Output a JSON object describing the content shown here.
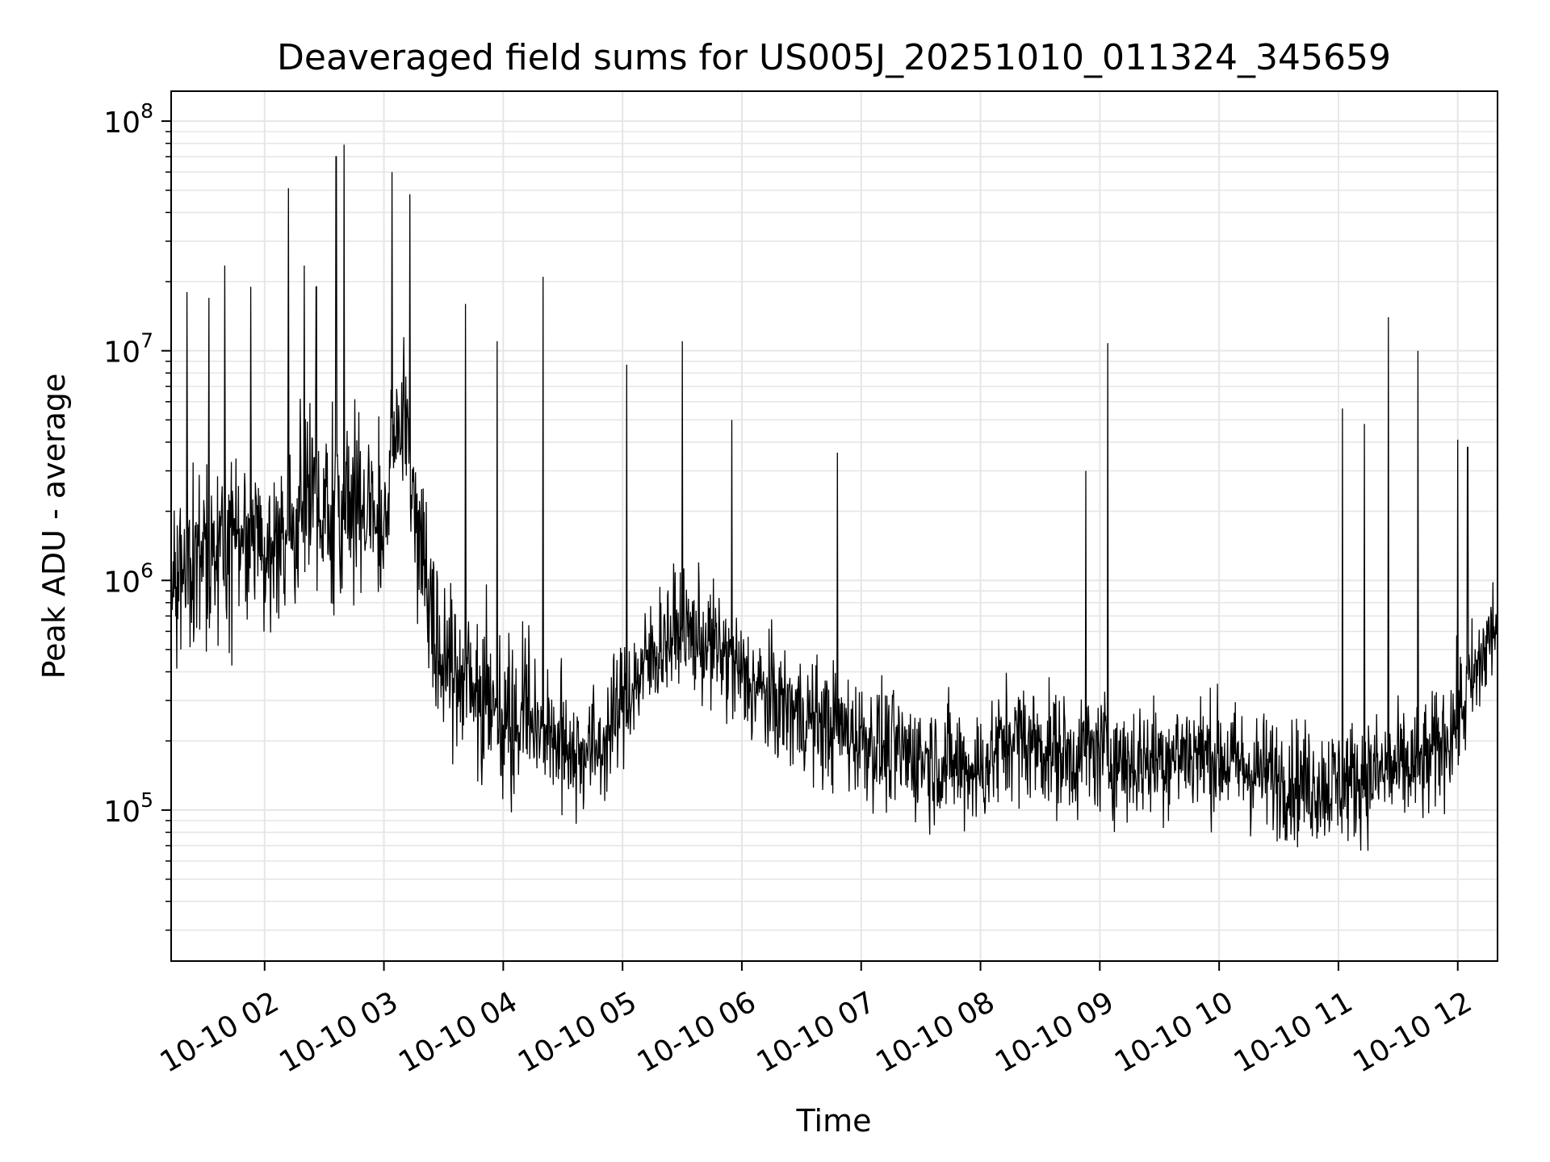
{
  "chart_data": {
    "type": "line",
    "title": "Deaveraged field sums for US005J_20251010_011324_345659",
    "xlabel": "Time",
    "ylabel": "Peak ADU - average",
    "yscale": "log",
    "ylim": [
      22000,
      135000000
    ],
    "xlim": [
      "10-10 01:13",
      "10-10 12:20"
    ],
    "grid": true,
    "line_color": "#000000",
    "grid_color": "#e6e6e6",
    "x_tick_labels": [
      "10-10 02",
      "10-10 03",
      "10-10 04",
      "10-10 05",
      "10-10 06",
      "10-10 07",
      "10-10 08",
      "10-10 09",
      "10-10 10",
      "10-10 11",
      "10-10 12"
    ],
    "y_tick_labels": [
      {
        "base": "10",
        "exp": "5"
      },
      {
        "base": "10",
        "exp": "6"
      },
      {
        "base": "10",
        "exp": "7"
      },
      {
        "base": "10",
        "exp": "8"
      }
    ],
    "series": [
      {
        "x": [
          "10-10 01:13",
          "10-10 01:20",
          "10-10 01:30",
          "10-10 01:40",
          "10-10 01:50",
          "10-10 02:00",
          "10-10 02:10",
          "10-10 02:20",
          "10-10 02:30",
          "10-10 02:40",
          "10-10 02:50",
          "10-10 03:00",
          "10-10 03:05",
          "10-10 03:10",
          "10-10 03:20",
          "10-10 03:30",
          "10-10 03:40",
          "10-10 03:50",
          "10-10 04:00",
          "10-10 04:10",
          "10-10 04:20",
          "10-10 04:30",
          "10-10 04:40",
          "10-10 04:50",
          "10-10 05:00",
          "10-10 05:10",
          "10-10 05:20",
          "10-10 05:30",
          "10-10 05:40",
          "10-10 05:50",
          "10-10 06:00",
          "10-10 06:15",
          "10-10 06:30",
          "10-10 06:45",
          "10-10 07:00",
          "10-10 07:15",
          "10-10 07:30",
          "10-10 07:45",
          "10-10 08:00",
          "10-10 08:15",
          "10-10 08:30",
          "10-10 08:45",
          "10-10 09:00",
          "10-10 09:15",
          "10-10 09:30",
          "10-10 09:45",
          "10-10 10:00",
          "10-10 10:15",
          "10-10 10:30",
          "10-10 10:45",
          "10-10 11:00",
          "10-10 11:15",
          "10-10 11:30",
          "10-10 11:45",
          "10-10 12:00",
          "10-10 12:10",
          "10-10 12:20"
        ],
        "y": [
          1000000,
          1100000,
          1200000,
          1300000,
          1500000,
          1500000,
          1700000,
          1900000,
          2100000,
          2200000,
          2000000,
          1600000,
          4000000,
          5200000,
          1200000,
          450000,
          400000,
          300000,
          250000,
          300000,
          220000,
          190000,
          180000,
          190000,
          300000,
          400000,
          550000,
          600000,
          550000,
          480000,
          380000,
          300000,
          260000,
          230000,
          210000,
          180000,
          170000,
          160000,
          150000,
          210000,
          190000,
          170000,
          180000,
          160000,
          170000,
          180000,
          170000,
          150000,
          140000,
          130000,
          130000,
          140000,
          150000,
          160000,
          250000,
          400000,
          700000
        ]
      }
    ],
    "spikes": [
      {
        "x": "10-10 01:21",
        "y": 18000000
      },
      {
        "x": "10-10 01:32",
        "y": 17000000
      },
      {
        "x": "10-10 01:40",
        "y": 23500000
      },
      {
        "x": "10-10 01:53",
        "y": 19000000
      },
      {
        "x": "10-10 02:12",
        "y": 51000000
      },
      {
        "x": "10-10 02:20",
        "y": 23500000
      },
      {
        "x": "10-10 02:26",
        "y": 19000000
      },
      {
        "x": "10-10 02:36",
        "y": 70000000
      },
      {
        "x": "10-10 02:40",
        "y": 79000000
      },
      {
        "x": "10-10 03:04",
        "y": 60000000
      },
      {
        "x": "10-10 03:13",
        "y": 48000000
      },
      {
        "x": "10-10 03:41",
        "y": 16000000
      },
      {
        "x": "10-10 03:57",
        "y": 11000000
      },
      {
        "x": "10-10 04:20",
        "y": 21000000
      },
      {
        "x": "10-10 05:02",
        "y": 8700000
      },
      {
        "x": "10-10 05:30",
        "y": 11000000
      },
      {
        "x": "10-10 05:55",
        "y": 5000000
      },
      {
        "x": "10-10 06:48",
        "y": 3600000
      },
      {
        "x": "10-10 08:53",
        "y": 3000000
      },
      {
        "x": "10-10 09:04",
        "y": 10800000
      },
      {
        "x": "10-10 11:02",
        "y": 5600000
      },
      {
        "x": "10-10 11:13",
        "y": 4800000
      },
      {
        "x": "10-10 11:25",
        "y": 14000000
      },
      {
        "x": "10-10 11:40",
        "y": 10000000
      },
      {
        "x": "10-10 12:00",
        "y": 4100000
      },
      {
        "x": "10-10 12:05",
        "y": 3800000
      }
    ]
  }
}
